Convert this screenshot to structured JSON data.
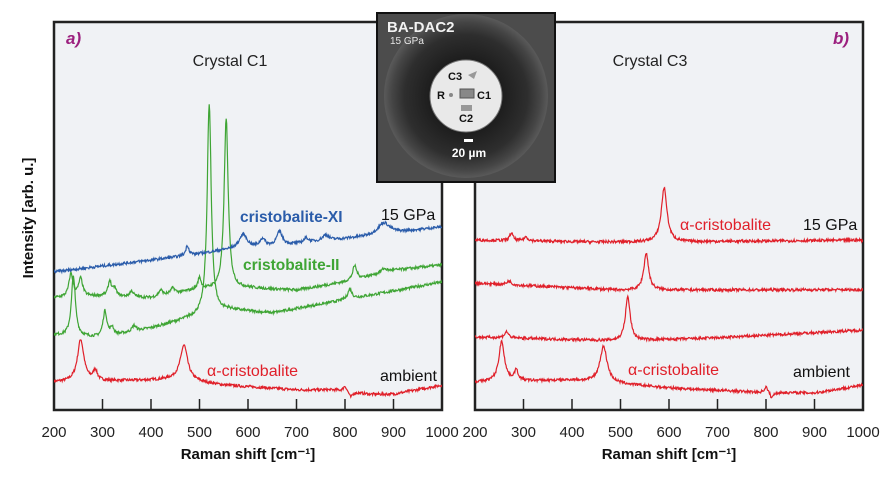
{
  "y_axis_label": "Intensity [arb. u.]",
  "colors": {
    "red": "#e0202a",
    "green": "#3fa535",
    "blue": "#2a5caa",
    "panel_letter": "#9b1f7e",
    "plot_bg": "#f0f2f5"
  },
  "inset": {
    "title": "BA-DAC2",
    "pressure": "15 GPa",
    "labels": [
      "C3",
      "R",
      "C1",
      "C2"
    ],
    "scale": "20 µm"
  },
  "chart_data": [
    {
      "type": "line",
      "panel": "a)",
      "title": "Crystal C1",
      "xlabel": "Raman shift [cm⁻¹]",
      "ylabel": "Intensity [arb. u.]",
      "xlim": [
        200,
        1000
      ],
      "ylim": [
        0,
        100
      ],
      "xticks": [
        "200",
        "300",
        "400",
        "500",
        "600",
        "700",
        "800",
        "900",
        "1000"
      ],
      "grid": false,
      "annotations": {
        "top_pressure": "15 GPa",
        "bottom_pressure": "ambient"
      },
      "series": [
        {
          "name": "α-cristobalite",
          "color": "#e0202a",
          "baseline": [
            [
              200,
              7.2
            ],
            [
              400,
              7.7
            ],
            [
              450,
              8
            ],
            [
              550,
              6.4
            ],
            [
              700,
              5.2
            ],
            [
              780,
              5.2
            ],
            [
              850,
              4.1
            ],
            [
              900,
              4.1
            ],
            [
              1000,
              6.4
            ]
          ],
          "peaks": [
            [
              255,
              10.8,
              8
            ],
            [
              285,
              2.6,
              5
            ],
            [
              468,
              9,
              9
            ],
            [
              800,
              1.4,
              4
            ],
            [
              812,
              -1.5,
              4
            ]
          ]
        },
        {
          "name": "",
          "color": "#3fa535",
          "baseline": [
            [
              200,
              19.3
            ],
            [
              300,
              18.6
            ],
            [
              400,
              21.1
            ],
            [
              480,
              23.7
            ],
            [
              560,
              25.8
            ],
            [
              650,
              25
            ],
            [
              800,
              28.4
            ],
            [
              1000,
              33
            ]
          ],
          "peaks": [
            [
              240,
              15.5,
              5
            ],
            [
              305,
              6.7,
              5
            ],
            [
              320,
              2,
              4
            ],
            [
              365,
              1.5,
              5
            ],
            [
              520,
              54,
              5
            ],
            [
              810,
              2.6,
              5
            ]
          ]
        },
        {
          "name": "cristobalite-II",
          "color": "#3fa535",
          "baseline": [
            [
              200,
              28.9
            ],
            [
              300,
              29.4
            ],
            [
              400,
              28.9
            ],
            [
              490,
              30.9
            ],
            [
              600,
              31.4
            ],
            [
              700,
              30.9
            ],
            [
              800,
              33
            ],
            [
              900,
              36
            ],
            [
              1000,
              37.4
            ]
          ],
          "peaks": [
            [
              235,
              6,
              5
            ],
            [
              255,
              4.6,
              5
            ],
            [
              315,
              3.9,
              4
            ],
            [
              325,
              2,
              4
            ],
            [
              360,
              1.5,
              5
            ],
            [
              420,
              1.5,
              5
            ],
            [
              445,
              1.5,
              5
            ],
            [
              500,
              3,
              4
            ],
            [
              555,
              44,
              5
            ],
            [
              820,
              3.6,
              5
            ],
            [
              880,
              1,
              8
            ]
          ]
        },
        {
          "name": "cristobalite-XI",
          "color": "#2a5caa",
          "baseline": [
            [
              200,
              35.6
            ],
            [
              470,
              39.7
            ],
            [
              550,
              41.2
            ],
            [
              700,
              42.8
            ],
            [
              850,
              44.8
            ],
            [
              1000,
              47.2
            ]
          ],
          "peaks": [
            [
              475,
              2.6,
              4
            ],
            [
              590,
              3.6,
              10
            ],
            [
              630,
              2,
              6
            ],
            [
              665,
              3.5,
              7
            ],
            [
              720,
              1.2,
              6
            ],
            [
              760,
              1.5,
              8
            ],
            [
              880,
              3,
              15
            ]
          ]
        }
      ]
    },
    {
      "type": "line",
      "panel": "b)",
      "title": "Crystal C3",
      "xlabel": "Raman shift [cm⁻¹]",
      "xlim": [
        200,
        1000
      ],
      "ylim": [
        0,
        100
      ],
      "xticks": [
        "200",
        "300",
        "400",
        "500",
        "600",
        "700",
        "800",
        "900",
        "1000"
      ],
      "grid": false,
      "annotations": {
        "top_label": "α-cristobalite",
        "top_pressure": "15 GPa",
        "bottom_pressure": "ambient"
      },
      "series": [
        {
          "name": "α-cristobalite",
          "color": "#e0202a",
          "baseline": [
            [
              200,
              43.8
            ],
            [
              450,
              43.3
            ],
            [
              600,
              43.3
            ],
            [
              1000,
              43.8
            ]
          ],
          "peaks": [
            [
              275,
              2,
              4
            ],
            [
              305,
              1,
              5
            ],
            [
              590,
              14,
              7
            ]
          ]
        },
        {
          "name": "",
          "color": "#e0202a",
          "baseline": [
            [
              200,
              32.7
            ],
            [
              500,
              30.9
            ],
            [
              1000,
              31
            ]
          ],
          "peaks": [
            [
              270,
              1,
              5
            ],
            [
              553,
              9.5,
              6
            ]
          ]
        },
        {
          "name": "",
          "color": "#e0202a",
          "baseline": [
            [
              200,
              18.8
            ],
            [
              500,
              17.8
            ],
            [
              700,
              18.6
            ],
            [
              1000,
              20.6
            ]
          ],
          "peaks": [
            [
              265,
              1.6,
              5
            ],
            [
              515,
              11.3,
              6
            ]
          ]
        },
        {
          "name": "α-cristobalite",
          "color": "#e0202a",
          "baseline": [
            [
              200,
              7.2
            ],
            [
              400,
              7.7
            ],
            [
              600,
              5.7
            ],
            [
              780,
              4.6
            ],
            [
              900,
              4.4
            ],
            [
              1000,
              6.4
            ]
          ],
          "peaks": [
            [
              255,
              10.3,
              7
            ],
            [
              285,
              2.6,
              5
            ],
            [
              465,
              9.3,
              9
            ],
            [
              800,
              1.5,
              4
            ],
            [
              812,
              -1.5,
              4
            ]
          ]
        }
      ]
    }
  ]
}
